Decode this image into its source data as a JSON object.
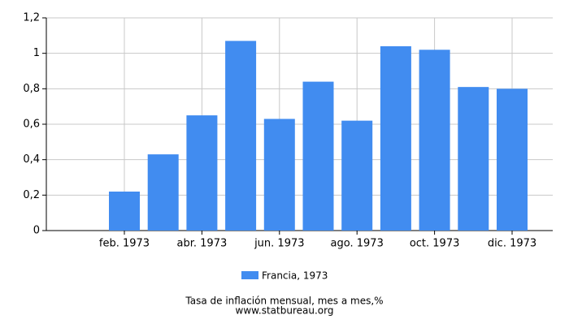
{
  "chart_data": {
    "type": "bar",
    "categories": [
      null,
      "feb. 1973",
      null,
      "abr. 1973",
      null,
      "jun. 1973",
      null,
      "ago. 1973",
      null,
      "oct. 1973",
      null,
      "dic. 1973"
    ],
    "series": [
      {
        "name": "Francia, 1973",
        "color": "#418cf0",
        "values": [
          null,
          0.22,
          0.43,
          0.65,
          1.07,
          0.63,
          0.84,
          0.62,
          1.04,
          1.02,
          0.81,
          0.8
        ]
      }
    ],
    "ylim": [
      0,
      1.2
    ],
    "yticks": [
      0,
      {
        "value": 0.2,
        "label": "0,2"
      },
      {
        "value": 0.4,
        "label": "0,4"
      },
      {
        "value": 0.6,
        "label": "0,6"
      },
      {
        "value": 0.8,
        "label": "0,8"
      },
      1,
      {
        "value": 1.2,
        "label": "1,2"
      }
    ],
    "grid": true,
    "caption": "Tasa de inflación mensual, mes a mes,%",
    "source": "www.statbureau.org"
  }
}
